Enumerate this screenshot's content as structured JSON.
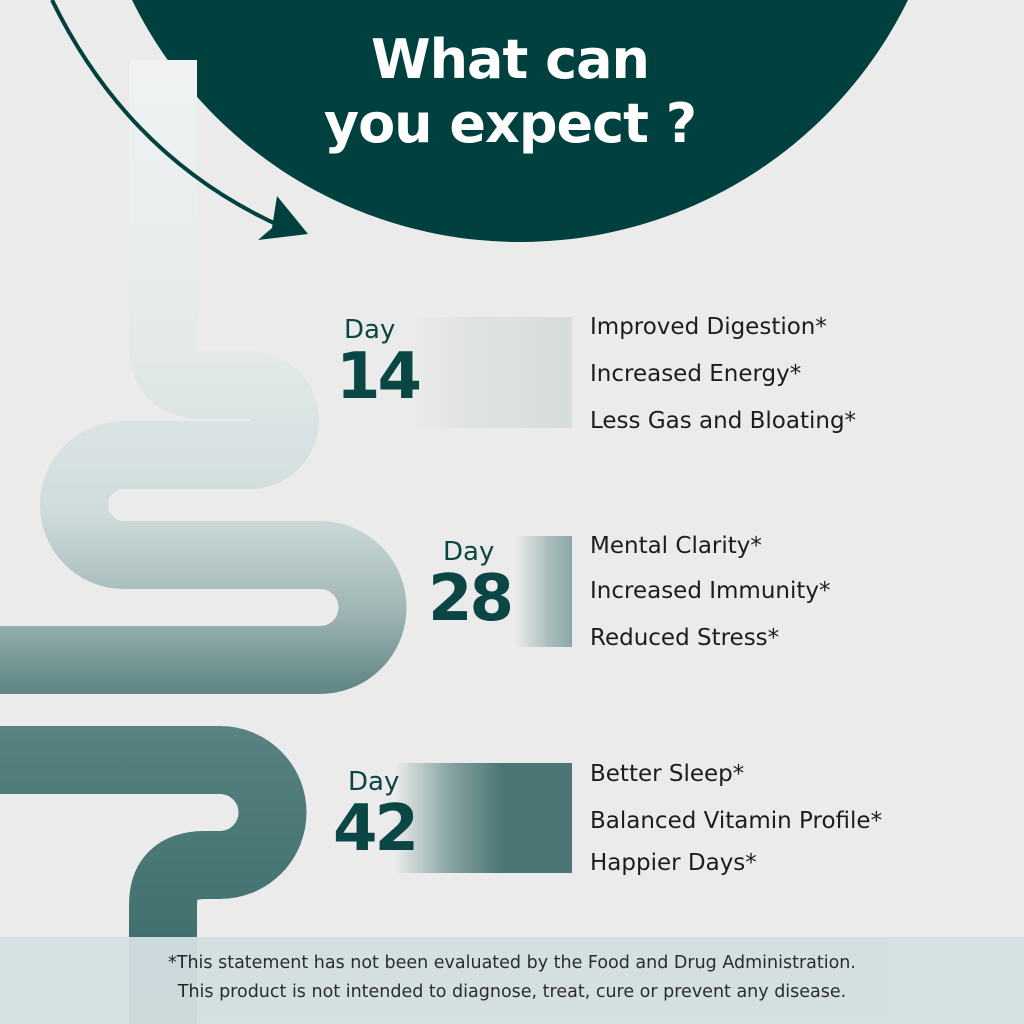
{
  "title": {
    "line1": "What can",
    "line2": "you expect ?"
  },
  "milestones": [
    {
      "label": "Day",
      "day": "14",
      "benefits": [
        "Improved Digestion*",
        "Increased Energy*",
        "Less Gas and Bloating*"
      ]
    },
    {
      "label": "Day",
      "day": "28",
      "benefits": [
        "Mental Clarity*",
        "Increased Immunity*",
        "Reduced Stress*"
      ]
    },
    {
      "label": "Day",
      "day": "42",
      "benefits": [
        "Better Sleep*",
        "Balanced Vitamin Profile*",
        "Happier Days*"
      ]
    }
  ],
  "disclaimer": {
    "line1": "*This statement has not been evaluated by the Food and Drug Administration.",
    "line2": "This product is not intended to diagnose, treat, cure or prevent any disease."
  },
  "colors": {
    "brand": "#00403f",
    "background": "#ebebeb",
    "footer": "#d3dfe2"
  }
}
